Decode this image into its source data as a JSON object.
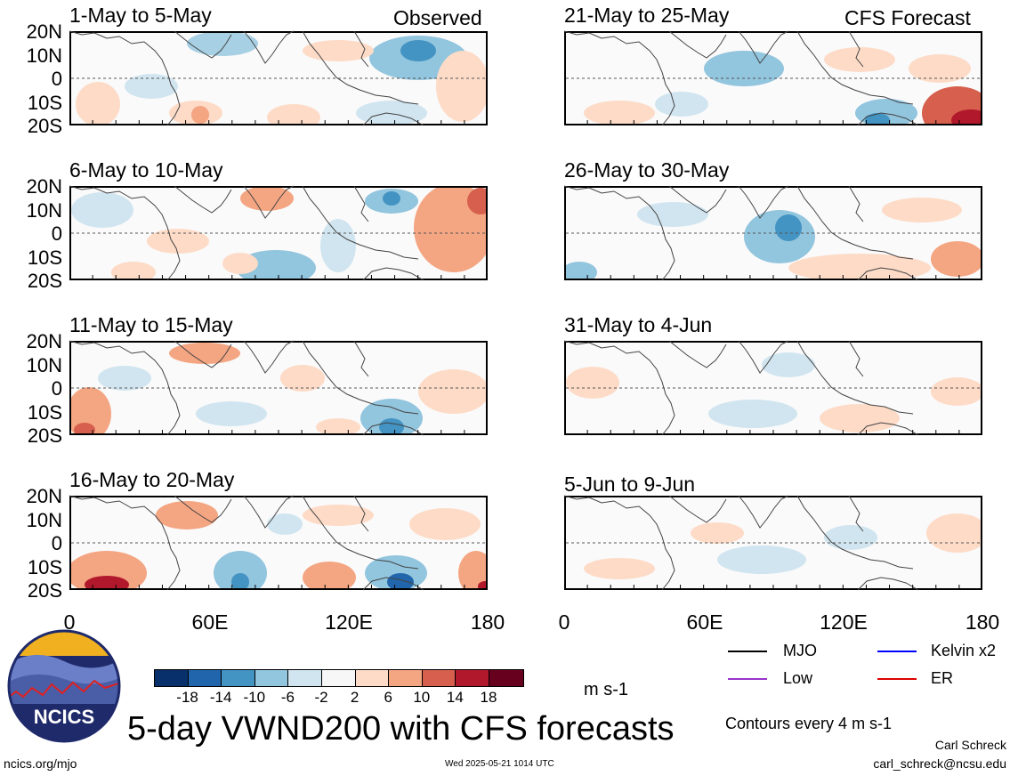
{
  "headers": {
    "observed": "Observed",
    "forecast": "CFS Forecast"
  },
  "panels": [
    {
      "title": "1-May to 5-May"
    },
    {
      "title": "6-May to 10-May"
    },
    {
      "title": "11-May to 15-May"
    },
    {
      "title": "16-May to 20-May"
    },
    {
      "title": "21-May to 25-May"
    },
    {
      "title": "26-May to 30-May"
    },
    {
      "title": "31-May to 4-Jun"
    },
    {
      "title": "5-Jun to 9-Jun"
    }
  ],
  "lat_labels": [
    "20N",
    "10N",
    "0",
    "10S",
    "20S"
  ],
  "lon_labels": [
    "0",
    "60E",
    "120E",
    "180"
  ],
  "colorbar": {
    "ticks": [
      "-18",
      "-14",
      "-10",
      "-6",
      "-2",
      "2",
      "6",
      "10",
      "14",
      "18"
    ],
    "colors": [
      "#08306b",
      "#2166ac",
      "#4393c3",
      "#92c5de",
      "#d1e5f0",
      "#f7f7f7",
      "#fddbc7",
      "#f4a582",
      "#d6604d",
      "#b2182b",
      "#67001f"
    ],
    "units": "m s-1"
  },
  "legend": [
    {
      "label": "MJO",
      "color": "#000000"
    },
    {
      "label": "Kelvin x2",
      "color": "#0000ff"
    },
    {
      "label": "Low",
      "color": "#9933cc"
    },
    {
      "label": "ER",
      "color": "#dd0000"
    }
  ],
  "contour_note": "Contours every 4 m s-1",
  "main_title": "5-day VWND200 with CFS forecasts",
  "logo_text": "NCICS",
  "footer": {
    "left": "ncics.org/mjo",
    "center": "Wed 2025-05-21 1014 UTC",
    "author": "Carl Schreck",
    "email": "carl_schreck@ncsu.edu"
  }
}
